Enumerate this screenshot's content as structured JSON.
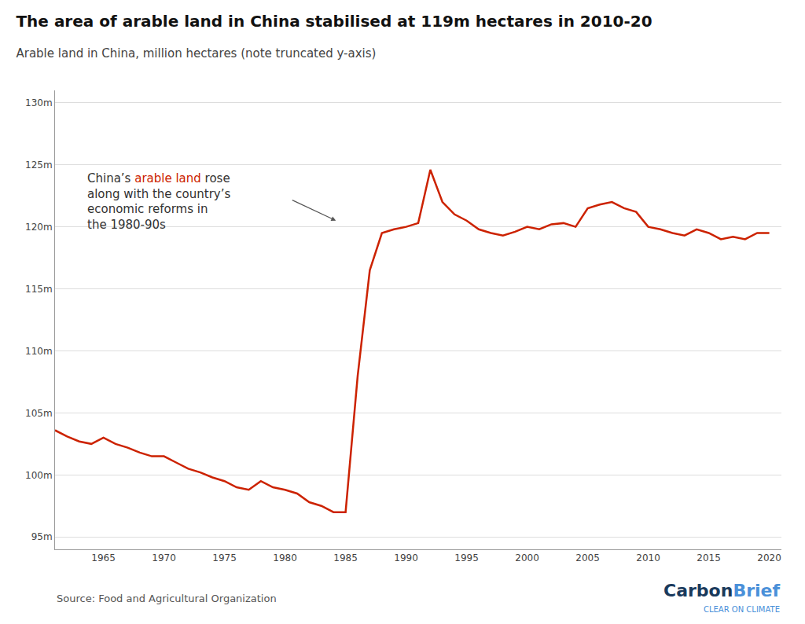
{
  "chart_data": {
    "type": "line",
    "title": "The area of arable land in China stabilised at 119m hectares in 2010-20",
    "subtitle": "Arable land in China, million hectares (note truncated y-axis)",
    "source": "Source: Food and Agricultural Organization",
    "x": [
      1961,
      1962,
      1963,
      1964,
      1965,
      1966,
      1967,
      1968,
      1969,
      1970,
      1971,
      1972,
      1973,
      1974,
      1975,
      1976,
      1977,
      1978,
      1979,
      1980,
      1981,
      1982,
      1983,
      1984,
      1985,
      1986,
      1987,
      1988,
      1989,
      1990,
      1991,
      1992,
      1993,
      1994,
      1995,
      1996,
      1997,
      1998,
      1999,
      2000,
      2001,
      2002,
      2003,
      2004,
      2005,
      2006,
      2007,
      2008,
      2009,
      2010,
      2011,
      2012,
      2013,
      2014,
      2015,
      2016,
      2017,
      2018,
      2019,
      2020
    ],
    "values": [
      103.6,
      103.1,
      102.7,
      102.5,
      103.0,
      102.5,
      102.2,
      101.8,
      101.5,
      101.5,
      101.0,
      100.5,
      100.2,
      99.8,
      99.5,
      99.0,
      98.8,
      99.5,
      99.0,
      98.8,
      98.5,
      97.8,
      97.5,
      97.0,
      97.0,
      108.0,
      116.5,
      119.5,
      119.8,
      120.0,
      120.3,
      124.6,
      122.0,
      121.0,
      120.5,
      119.8,
      119.5,
      119.3,
      119.6,
      120.0,
      119.8,
      120.2,
      120.3,
      120.0,
      121.5,
      121.8,
      122.0,
      121.5,
      121.2,
      120.0,
      119.8,
      119.5,
      119.3,
      119.8,
      119.5,
      119.0,
      119.2,
      119.0,
      119.5,
      119.5
    ],
    "color": "#cc2200",
    "xlim": [
      1961,
      2021
    ],
    "ylim": [
      94,
      131
    ],
    "xticks": [
      1965,
      1970,
      1975,
      1980,
      1985,
      1990,
      1995,
      2000,
      2005,
      2010,
      2015,
      2020
    ],
    "yticks": [
      {
        "value": 95,
        "label": "95m"
      },
      {
        "value": 100,
        "label": "100m"
      },
      {
        "value": 105,
        "label": "105m"
      },
      {
        "value": 110,
        "label": "110m"
      },
      {
        "value": 115,
        "label": "115m"
      },
      {
        "value": 120,
        "label": "120m"
      },
      {
        "value": 125,
        "label": "125m"
      },
      {
        "value": 130,
        "label": "130m"
      }
    ],
    "grid": "y",
    "annotations": [
      {
        "lines": [
          "China’s arable land rose",
          "along with the country’s",
          "economic reforms in",
          "the 1980-90s"
        ],
        "color": "#333333",
        "highlight": "arable land",
        "highlight_color": "#cc2200"
      }
    ],
    "logo": [
      {
        "text": "Carbon",
        "color": "#1a3a5c"
      },
      {
        "text": "Brief",
        "color": "#4a90d9"
      }
    ],
    "tagline": {
      "text": "CLEAR ON CLIMATE",
      "color": "#4a90d9"
    }
  }
}
